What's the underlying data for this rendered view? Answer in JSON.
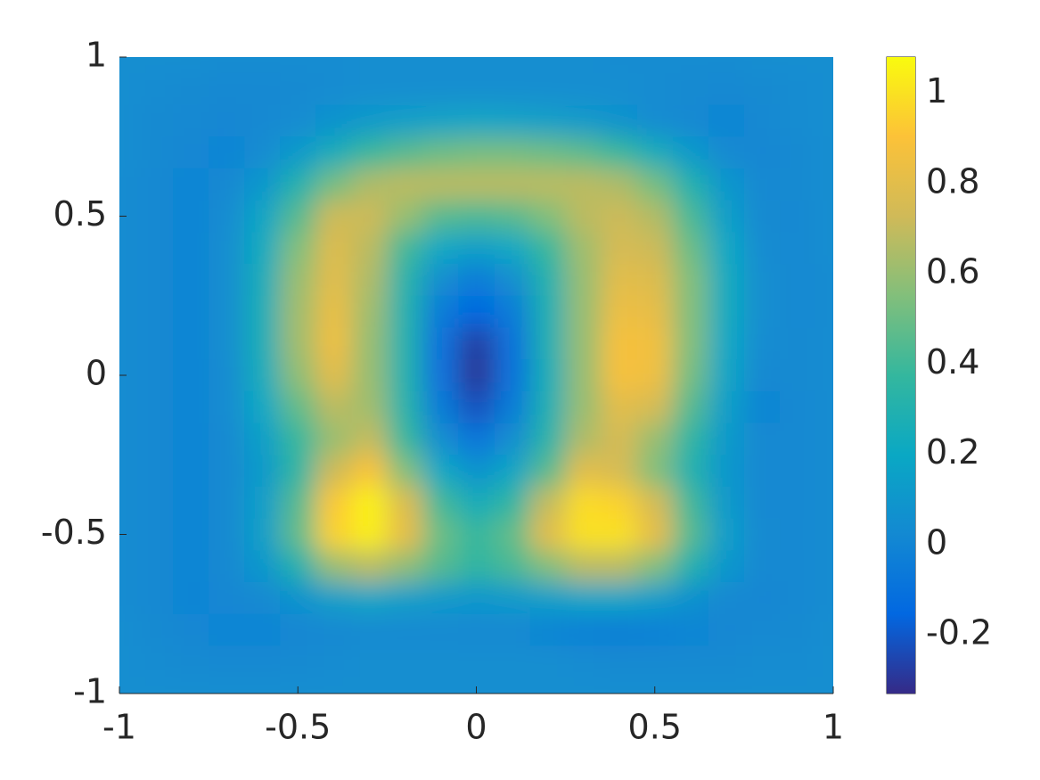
{
  "chart_data": {
    "type": "heatmap",
    "x": [
      -1.0,
      -0.9,
      -0.8,
      -0.7,
      -0.6,
      -0.5,
      -0.4,
      -0.3,
      -0.2,
      -0.1,
      0.0,
      0.1,
      0.2,
      0.3,
      0.4,
      0.5,
      0.6,
      0.7,
      0.8,
      0.9,
      1.0
    ],
    "y": [
      1.0,
      0.9,
      0.8,
      0.7,
      0.6,
      0.5,
      0.4,
      0.3,
      0.2,
      0.1,
      0.0,
      -0.1,
      -0.2,
      -0.3,
      -0.4,
      -0.5,
      -0.6,
      -0.7,
      -0.8,
      -0.9,
      -1.0
    ],
    "z": [
      [
        0.05,
        0.05,
        0.05,
        0.04,
        0.04,
        0.04,
        0.04,
        0.05,
        0.05,
        0.05,
        0.05,
        0.05,
        0.05,
        0.05,
        0.04,
        0.04,
        0.04,
        0.04,
        0.05,
        0.05,
        0.05
      ],
      [
        0.05,
        0.04,
        0.03,
        0.02,
        0.02,
        0.03,
        0.04,
        0.05,
        0.05,
        0.05,
        0.05,
        0.05,
        0.05,
        0.05,
        0.05,
        0.04,
        0.03,
        0.02,
        0.03,
        0.04,
        0.05
      ],
      [
        0.05,
        0.03,
        0.02,
        0.01,
        0.02,
        0.04,
        0.08,
        0.12,
        0.15,
        0.17,
        0.18,
        0.17,
        0.15,
        0.12,
        0.08,
        0.04,
        0.02,
        0.0,
        0.02,
        0.04,
        0.05
      ],
      [
        0.05,
        0.03,
        0.01,
        0.0,
        0.04,
        0.12,
        0.25,
        0.38,
        0.45,
        0.5,
        0.52,
        0.52,
        0.5,
        0.46,
        0.38,
        0.25,
        0.12,
        0.03,
        0.01,
        0.03,
        0.05
      ],
      [
        0.04,
        0.02,
        0.0,
        0.02,
        0.1,
        0.3,
        0.52,
        0.65,
        0.68,
        0.68,
        0.68,
        0.68,
        0.68,
        0.68,
        0.65,
        0.52,
        0.3,
        0.1,
        0.02,
        0.03,
        0.05
      ],
      [
        0.04,
        0.02,
        0.0,
        0.04,
        0.18,
        0.45,
        0.72,
        0.72,
        0.6,
        0.45,
        0.42,
        0.45,
        0.55,
        0.68,
        0.72,
        0.66,
        0.42,
        0.15,
        0.03,
        0.02,
        0.05
      ],
      [
        0.04,
        0.02,
        0.0,
        0.05,
        0.22,
        0.55,
        0.78,
        0.68,
        0.4,
        0.2,
        0.15,
        0.2,
        0.38,
        0.62,
        0.75,
        0.72,
        0.5,
        0.2,
        0.04,
        0.02,
        0.05
      ],
      [
        0.04,
        0.02,
        0.0,
        0.05,
        0.25,
        0.6,
        0.8,
        0.65,
        0.32,
        0.05,
        -0.05,
        0.05,
        0.3,
        0.6,
        0.8,
        0.78,
        0.55,
        0.22,
        0.05,
        0.02,
        0.04
      ],
      [
        0.04,
        0.02,
        0.0,
        0.05,
        0.26,
        0.62,
        0.83,
        0.62,
        0.3,
        -0.05,
        -0.15,
        -0.05,
        0.28,
        0.6,
        0.84,
        0.82,
        0.55,
        0.22,
        0.05,
        0.02,
        0.04
      ],
      [
        0.04,
        0.02,
        0.0,
        0.05,
        0.26,
        0.62,
        0.85,
        0.6,
        0.3,
        -0.1,
        -0.28,
        -0.1,
        0.28,
        0.6,
        0.88,
        0.86,
        0.55,
        0.2,
        0.04,
        0.03,
        0.04
      ],
      [
        0.04,
        0.02,
        0.0,
        0.04,
        0.24,
        0.58,
        0.8,
        0.6,
        0.3,
        -0.1,
        -0.3,
        -0.1,
        0.26,
        0.6,
        0.88,
        0.85,
        0.52,
        0.18,
        0.02,
        0.03,
        0.04
      ],
      [
        0.04,
        0.02,
        0.0,
        0.04,
        0.2,
        0.48,
        0.68,
        0.62,
        0.32,
        -0.05,
        -0.22,
        -0.05,
        0.28,
        0.6,
        0.8,
        0.75,
        0.45,
        0.15,
        0.0,
        0.02,
        0.04
      ],
      [
        0.04,
        0.02,
        0.0,
        0.03,
        0.15,
        0.38,
        0.6,
        0.7,
        0.38,
        0.05,
        -0.08,
        0.05,
        0.32,
        0.65,
        0.75,
        0.6,
        0.35,
        0.12,
        0.02,
        0.02,
        0.04
      ],
      [
        0.04,
        0.02,
        0.0,
        0.03,
        0.12,
        0.35,
        0.72,
        0.9,
        0.55,
        0.2,
        0.08,
        0.18,
        0.45,
        0.8,
        0.75,
        0.55,
        0.3,
        0.1,
        0.02,
        0.02,
        0.04
      ],
      [
        0.04,
        0.02,
        0.0,
        0.03,
        0.14,
        0.45,
        0.92,
        1.05,
        0.78,
        0.4,
        0.25,
        0.35,
        0.7,
        0.98,
        0.95,
        0.75,
        0.4,
        0.12,
        0.02,
        0.02,
        0.04
      ],
      [
        0.04,
        0.02,
        0.0,
        0.03,
        0.15,
        0.48,
        0.95,
        1.04,
        0.82,
        0.5,
        0.38,
        0.48,
        0.8,
        1.0,
        1.0,
        0.82,
        0.45,
        0.14,
        0.03,
        0.02,
        0.04
      ],
      [
        0.04,
        0.02,
        0.0,
        0.02,
        0.1,
        0.3,
        0.6,
        0.68,
        0.58,
        0.45,
        0.35,
        0.42,
        0.55,
        0.68,
        0.68,
        0.55,
        0.3,
        0.1,
        0.02,
        0.02,
        0.04
      ],
      [
        0.04,
        0.02,
        0.0,
        0.01,
        0.03,
        0.08,
        0.15,
        0.18,
        0.15,
        0.12,
        0.1,
        0.12,
        0.15,
        0.18,
        0.18,
        0.14,
        0.07,
        0.02,
        0.01,
        0.02,
        0.04
      ],
      [
        0.05,
        0.03,
        0.01,
        0.0,
        0.0,
        0.01,
        0.02,
        0.03,
        0.03,
        0.03,
        0.02,
        0.02,
        0.0,
        -0.02,
        -0.03,
        -0.02,
        0.0,
        0.01,
        0.02,
        0.03,
        0.05
      ],
      [
        0.05,
        0.04,
        0.03,
        0.02,
        0.02,
        0.03,
        0.04,
        0.05,
        0.05,
        0.05,
        0.05,
        0.05,
        0.05,
        0.04,
        0.03,
        0.03,
        0.03,
        0.03,
        0.04,
        0.04,
        0.05
      ],
      [
        0.05,
        0.05,
        0.05,
        0.05,
        0.05,
        0.05,
        0.05,
        0.05,
        0.05,
        0.05,
        0.05,
        0.05,
        0.05,
        0.05,
        0.05,
        0.05,
        0.05,
        0.05,
        0.05,
        0.05,
        0.05
      ]
    ],
    "xlim": [
      -1,
      1
    ],
    "ylim": [
      -1,
      1
    ],
    "xticks": [
      -1,
      -0.5,
      0,
      0.5,
      1
    ],
    "yticks": [
      -1,
      -0.5,
      0,
      0.5,
      1
    ],
    "clim": [
      -0.33,
      1.08
    ],
    "cticks": [
      -0.2,
      0,
      0.2,
      0.4,
      0.6,
      0.8,
      1
    ],
    "colormap": [
      "#352a87",
      "#0268e1",
      "#1389d2",
      "#0aa8c4",
      "#34b79e",
      "#82bf7b",
      "#d0ba58",
      "#fcc238",
      "#f9fb0e"
    ]
  }
}
